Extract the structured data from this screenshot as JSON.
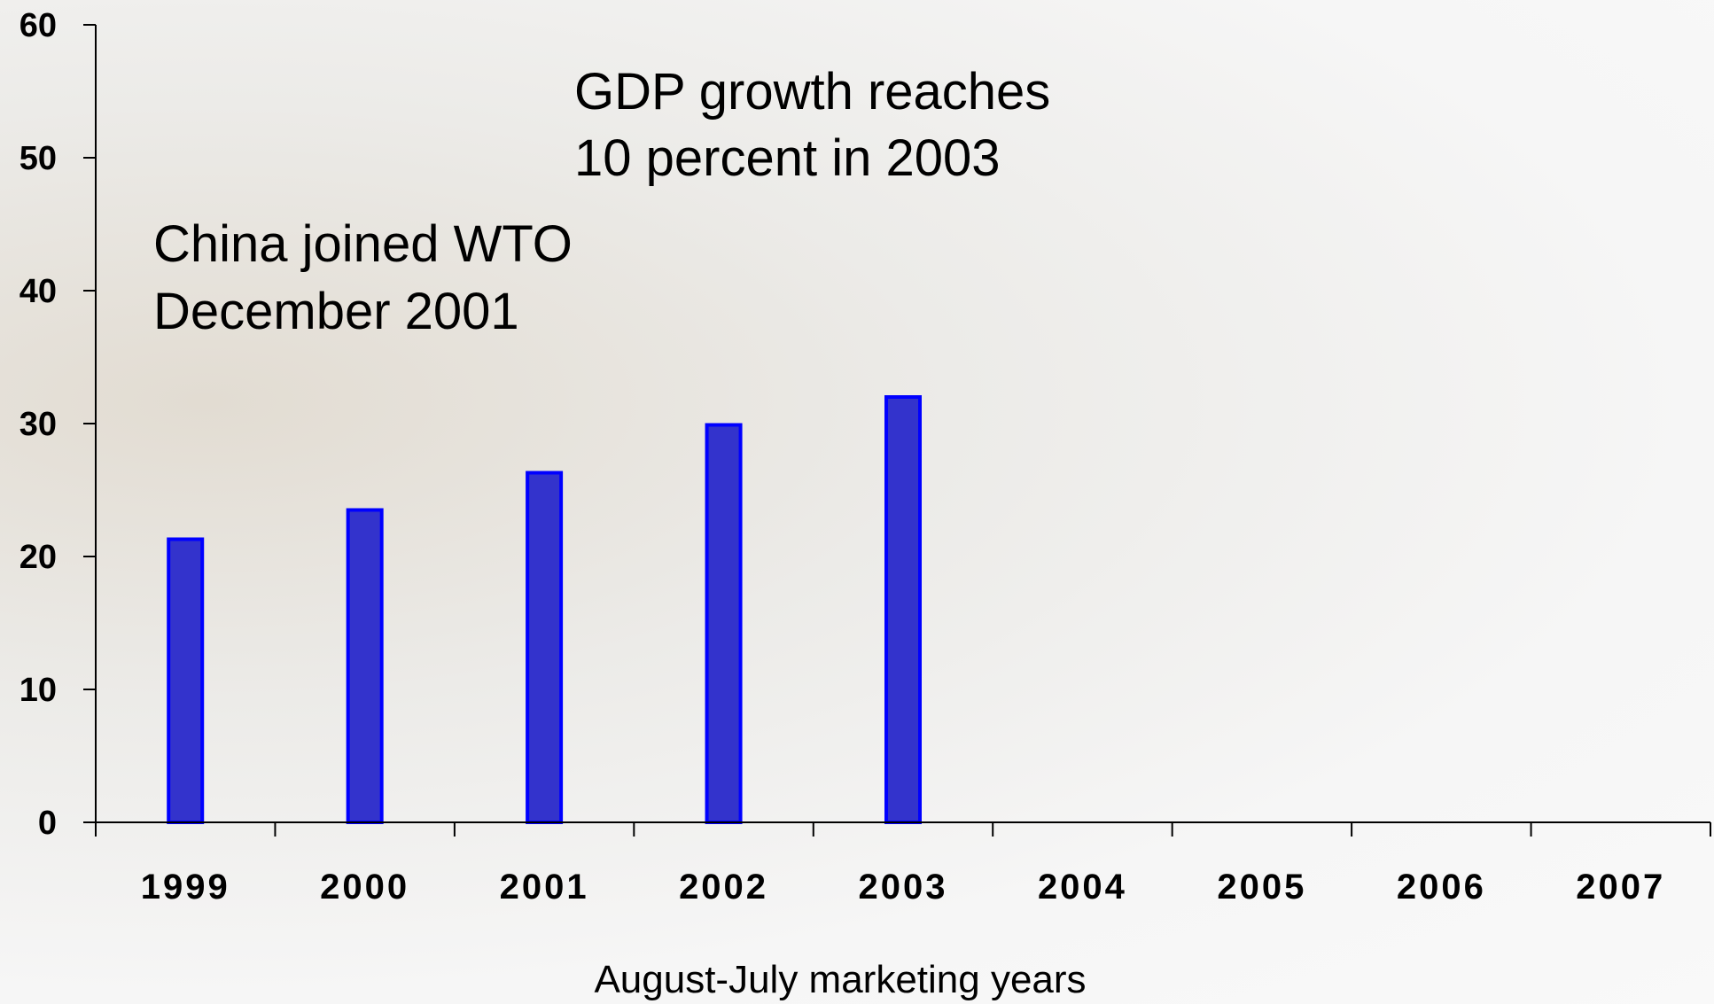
{
  "chart_data": {
    "type": "bar",
    "categories": [
      "1999",
      "2000",
      "2001",
      "2002",
      "2003",
      "2004",
      "2005",
      "2006",
      "2007"
    ],
    "values": [
      21.3,
      23.5,
      26.3,
      29.9,
      32.0,
      null,
      null,
      null,
      null
    ],
    "title": "",
    "xlabel": "August-July marketing years",
    "ylabel": "",
    "ylim": [
      0,
      60
    ],
    "yticks": [
      "0",
      "10",
      "20",
      "30",
      "40",
      "50",
      "60"
    ],
    "grid": false,
    "bar_color": "#3333cc",
    "bar_edge_color": "#0000ff",
    "annotations": [
      {
        "lines": [
          "GDP growth reaches",
          "10 percent in 2003"
        ]
      },
      {
        "lines": [
          "China joined WTO",
          "December 2001"
        ]
      }
    ]
  }
}
